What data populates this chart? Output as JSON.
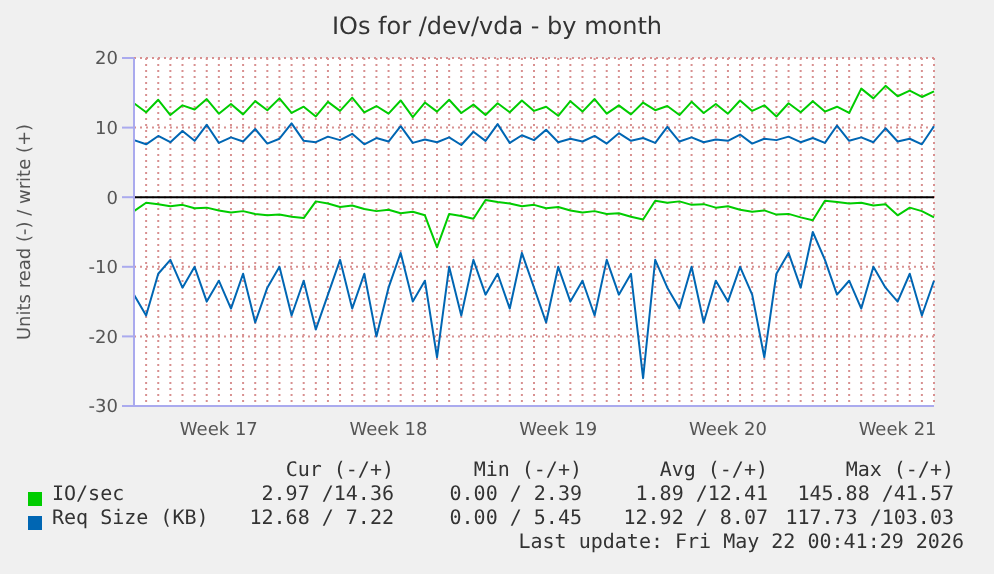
{
  "chart_data": {
    "type": "line",
    "title": "IOs for /dev/vda - by month",
    "ylabel": "Units read (-) / write (+)",
    "categories": [
      null,
      null,
      null,
      null,
      null,
      null,
      null,
      "Week 17",
      null,
      null,
      null,
      null,
      null,
      null,
      null,
      null,
      null,
      null,
      null,
      null,
      null,
      "Week 18",
      null,
      null,
      null,
      null,
      null,
      null,
      null,
      null,
      null,
      null,
      null,
      null,
      null,
      "Week 19",
      null,
      null,
      null,
      null,
      null,
      null,
      null,
      null,
      null,
      null,
      null,
      null,
      null,
      "Week 20",
      null,
      null,
      null,
      null,
      null,
      null,
      null,
      null,
      null,
      null,
      null,
      null,
      null,
      "Week 21",
      null,
      null,
      null
    ],
    "ylim": [
      -30,
      20
    ],
    "yticks": [
      -30,
      -20,
      -10,
      0,
      10,
      20
    ],
    "grid": true,
    "legend": "bottom",
    "ref_lines": [
      {
        "axis": "y",
        "value": 0,
        "color": "#000000"
      }
    ],
    "series": [
      {
        "name": "IO/sec",
        "color": "#00cc00",
        "values": [
          13.5,
          12.2,
          14.0,
          11.8,
          13.2,
          12.6,
          14.1,
          12.0,
          13.4,
          11.9,
          13.8,
          12.5,
          14.2,
          12.1,
          13.0,
          11.6,
          13.7,
          12.4,
          14.3,
          12.2,
          13.1,
          12.0,
          13.9,
          11.5,
          13.6,
          12.3,
          14.0,
          12.1,
          13.3,
          11.8,
          13.5,
          12.2,
          13.9,
          12.4,
          13.0,
          11.7,
          13.8,
          12.3,
          14.1,
          12.0,
          13.2,
          11.9,
          13.6,
          12.5,
          13.1,
          11.8,
          13.7,
          12.1,
          13.4,
          12.0,
          13.9,
          12.4,
          13.2,
          11.6,
          13.5,
          12.2,
          13.8,
          12.3,
          13.0,
          12.1,
          15.6,
          14.2,
          16.0,
          14.5,
          15.3,
          14.4,
          15.2
        ]
      },
      {
        "color": "#00cc00",
        "values": [
          -2.0,
          -0.8,
          -1.0,
          -1.3,
          -1.1,
          -1.6,
          -1.5,
          -1.9,
          -2.2,
          -2.0,
          -2.4,
          -2.6,
          -2.5,
          -2.8,
          -3.0,
          -0.6,
          -0.9,
          -1.4,
          -1.2,
          -1.7,
          -2.0,
          -1.8,
          -2.3,
          -2.1,
          -2.6,
          -7.2,
          -2.4,
          -2.7,
          -3.1,
          -0.4,
          -0.7,
          -0.9,
          -1.3,
          -1.1,
          -1.6,
          -1.4,
          -1.9,
          -2.2,
          -2.0,
          -2.4,
          -2.3,
          -2.8,
          -3.2,
          -0.5,
          -0.8,
          -0.6,
          -1.1,
          -1.0,
          -1.5,
          -1.3,
          -1.8,
          -2.1,
          -1.9,
          -2.5,
          -2.4,
          -2.9,
          -3.3,
          -0.5,
          -0.7,
          -0.9,
          -0.8,
          -1.2,
          -1.0,
          -2.6,
          -1.5,
          -2.0,
          -2.9
        ]
      },
      {
        "name": "Req Size (KB)",
        "color": "#0066b3",
        "values": [
          8.2,
          7.6,
          8.8,
          7.9,
          9.5,
          8.1,
          10.4,
          7.8,
          8.6,
          8.0,
          9.8,
          7.7,
          8.4,
          10.6,
          8.1,
          7.9,
          8.7,
          8.2,
          9.1,
          7.6,
          8.5,
          8.0,
          10.2,
          7.8,
          8.3,
          7.9,
          8.6,
          7.5,
          9.4,
          8.1,
          10.5,
          7.8,
          8.9,
          8.2,
          9.7,
          7.9,
          8.4,
          8.0,
          8.8,
          7.7,
          9.2,
          8.1,
          8.5,
          7.8,
          10.1,
          8.0,
          8.6,
          7.9,
          8.3,
          8.1,
          9.0,
          7.7,
          8.4,
          8.2,
          8.7,
          7.9,
          8.5,
          7.8,
          10.3,
          8.1,
          8.6,
          7.9,
          9.9,
          8.0,
          8.4,
          7.6,
          10.2
        ]
      },
      {
        "color": "#0066b3",
        "values": [
          -14,
          -17,
          -11,
          -9,
          -13,
          -10,
          -15,
          -12,
          -16,
          -11,
          -18,
          -13,
          -10,
          -17,
          -12,
          -19,
          -14,
          -9,
          -16,
          -11,
          -20,
          -13,
          -8,
          -15,
          -12,
          -23,
          -10,
          -17,
          -9,
          -14,
          -11,
          -16,
          -8,
          -13,
          -18,
          -10,
          -15,
          -12,
          -17,
          -9,
          -14,
          -11,
          -26,
          -9,
          -13,
          -16,
          -10,
          -18,
          -12,
          -15,
          -10,
          -14,
          -23,
          -11,
          -8,
          -13,
          -5,
          -9,
          -14,
          -12,
          -16,
          -10,
          -13,
          -15,
          -11,
          -17,
          -12
        ]
      }
    ],
    "annotations": [
      "Cur (-/+)",
      "Min (-/+)",
      "Avg (-/+)",
      "Max (-/+)",
      "2.97 /14.36",
      "0.00 / 2.39",
      "1.89 /12.41",
      "145.88 /41.57",
      "12.68 / 7.22",
      "0.00 / 5.45",
      "12.92 / 8.07",
      "117.73 /103.03",
      "Last update: Fri May 22 00:41:29 2026"
    ]
  }
}
